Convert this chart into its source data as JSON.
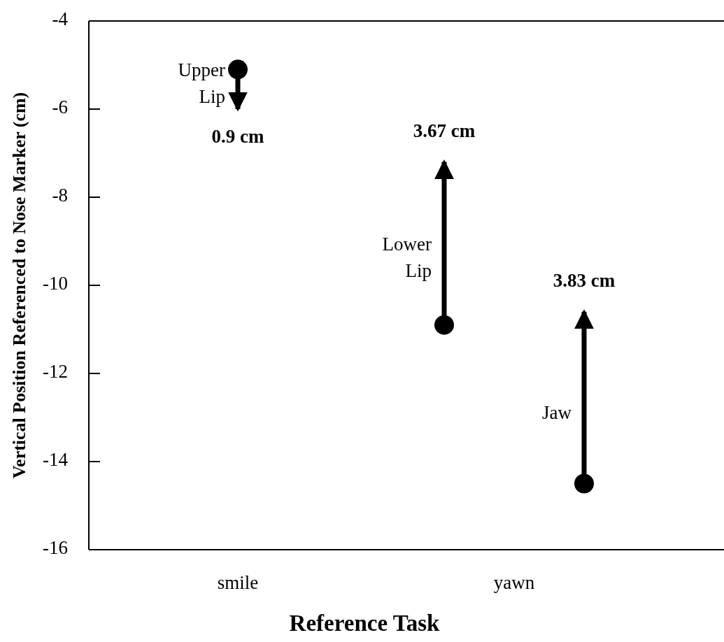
{
  "chart_data": {
    "type": "scatter",
    "xlabel": "Reference Task",
    "ylabel": "Vertical Position Referenced to Nose Marker (cm)",
    "categories": [
      "smile",
      "yawn"
    ],
    "ylim": [
      -16,
      -4
    ],
    "yticks": [
      -16,
      -14,
      -12,
      -10,
      -8,
      -6,
      -4
    ],
    "marker": "circle",
    "series": [
      {
        "name": "Upper Lip",
        "color": "#000000",
        "x": [
          "smile"
        ],
        "values": [
          -5.1
        ],
        "errors": [
          [
            -6.0,
            -5.1
          ]
        ]
      },
      {
        "name": "Lower Lip",
        "color": "#000000",
        "x": [
          "yawn"
        ],
        "values": [
          -10.9
        ],
        "errors": [
          [
            -10.9,
            -7.2
          ]
        ]
      },
      {
        "name": "Jaw",
        "color": "#000000",
        "x": [
          "yawn"
        ],
        "values": [
          -14.5
        ],
        "errors": [
          [
            -14.5,
            -10.6
          ]
        ]
      }
    ],
    "annotations": [
      "0.9 cm",
      "3.67 cm",
      "3.83 cm"
    ]
  }
}
